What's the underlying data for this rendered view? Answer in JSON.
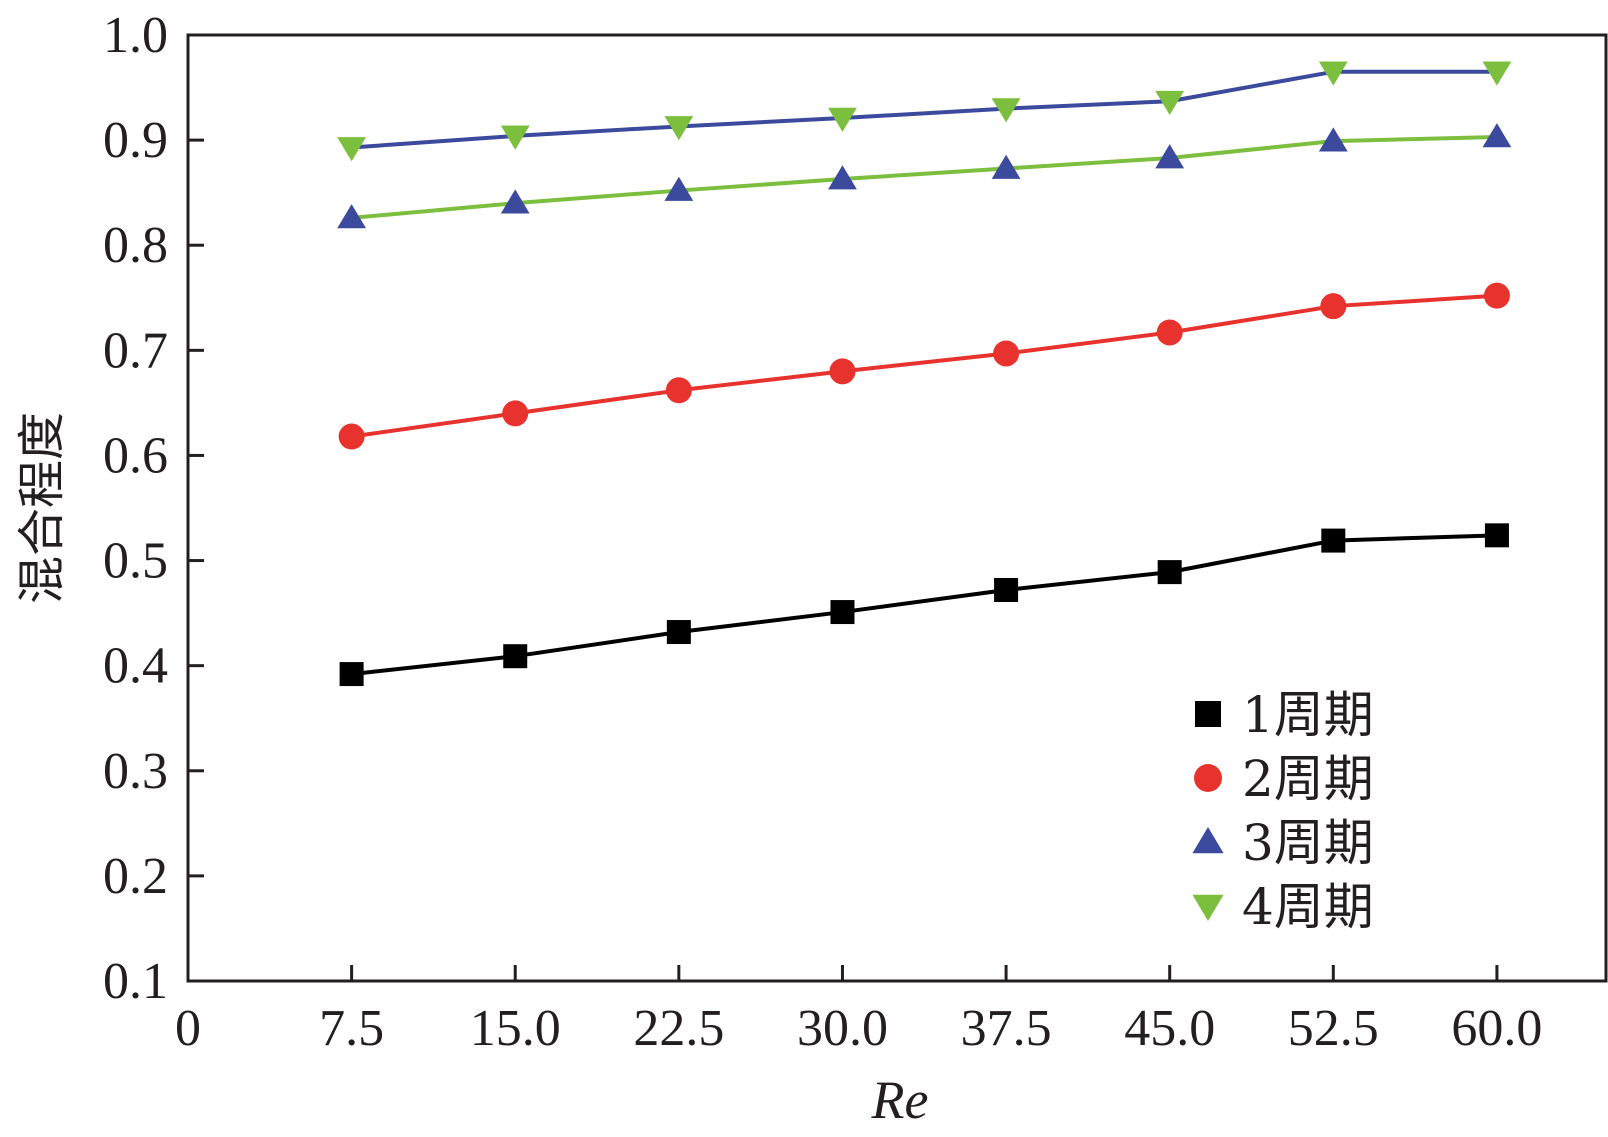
{
  "chart_data": {
    "type": "line",
    "title": "",
    "xlabel": "Re",
    "ylabel": "混合程度",
    "xlim": [
      0,
      65
    ],
    "ylim": [
      0.1,
      1.0
    ],
    "x": [
      7.5,
      15.0,
      22.5,
      30.0,
      37.5,
      45.0,
      52.5,
      60.0
    ],
    "x_ticks": [
      "0",
      "7.5",
      "15.0",
      "22.5",
      "30.0",
      "37.5",
      "45.0",
      "52.5",
      "60.0"
    ],
    "x_tick_values": [
      0,
      7.5,
      15.0,
      22.5,
      30.0,
      37.5,
      45.0,
      52.5,
      60.0
    ],
    "y_ticks": [
      "0.1",
      "0.2",
      "0.3",
      "0.4",
      "0.5",
      "0.6",
      "0.7",
      "0.8",
      "0.9",
      "1.0"
    ],
    "y_tick_values": [
      0.1,
      0.2,
      0.3,
      0.4,
      0.5,
      0.6,
      0.7,
      0.8,
      0.9,
      1.0
    ],
    "grid": false,
    "legend_position": "bottom-right",
    "series": [
      {
        "name": "1周期",
        "marker": "square",
        "marker_color": "#000000",
        "line_color": "#000000",
        "values": [
          0.392,
          0.409,
          0.432,
          0.451,
          0.472,
          0.489,
          0.519,
          0.524
        ]
      },
      {
        "name": "2周期",
        "marker": "circle",
        "marker_color": "#e8322d",
        "line_color": "#e8322d",
        "values": [
          0.618,
          0.64,
          0.662,
          0.68,
          0.697,
          0.717,
          0.742,
          0.752
        ]
      },
      {
        "name": "3周期",
        "marker": "triangle-up",
        "marker_color": "#3b4a9c",
        "line_color": "#7cbf3f",
        "values": [
          0.826,
          0.84,
          0.852,
          0.863,
          0.873,
          0.883,
          0.899,
          0.903
        ]
      },
      {
        "name": "4周期",
        "marker": "triangle-down",
        "marker_color": "#7cbf3f",
        "line_color": "#3b4a9c",
        "values": [
          0.893,
          0.904,
          0.913,
          0.921,
          0.93,
          0.937,
          0.965,
          0.965
        ]
      }
    ]
  }
}
